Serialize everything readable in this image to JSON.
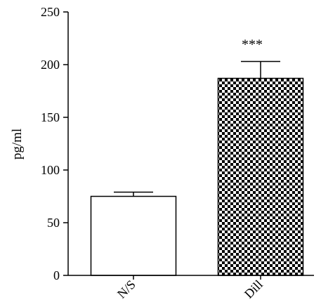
{
  "chart_data": {
    "type": "bar",
    "categories": [
      "N/S",
      "Dill"
    ],
    "values": [
      75,
      187
    ],
    "errors": [
      4,
      16
    ],
    "annotations": [
      "",
      "***"
    ],
    "patterns": [
      "none",
      "checkerboard"
    ],
    "ylabel": "pg/ml",
    "ylim": [
      0,
      250
    ],
    "yticks": [
      0,
      50,
      100,
      150,
      200,
      250
    ],
    "grid": false,
    "legend": "none",
    "colors": {
      "bar_stroke": "#000000",
      "bar_fill": "#ffffff",
      "pattern_dark": "#000000"
    }
  }
}
